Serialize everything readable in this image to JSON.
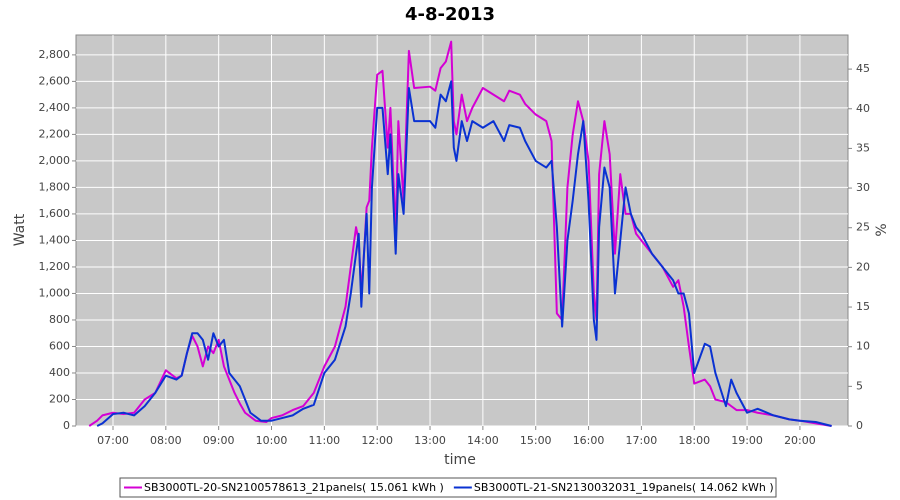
{
  "chart_data": {
    "type": "line",
    "title": "4-8-2013",
    "x_label": "time",
    "y_label": "Watt",
    "y2_label": "%",
    "grid": true,
    "x": [
      6.55,
      6.7,
      6.8,
      7.0,
      7.2,
      7.4,
      7.6,
      7.8,
      8.0,
      8.2,
      8.3,
      8.4,
      8.5,
      8.6,
      8.7,
      8.8,
      8.9,
      9.0,
      9.1,
      9.2,
      9.3,
      9.4,
      9.5,
      9.6,
      9.7,
      9.8,
      9.9,
      10.0,
      10.2,
      10.4,
      10.6,
      10.8,
      11.0,
      11.2,
      11.4,
      11.5,
      11.6,
      11.65,
      11.7,
      11.75,
      11.8,
      11.85,
      11.9,
      12.0,
      12.1,
      12.2,
      12.25,
      12.35,
      12.4,
      12.5,
      12.6,
      12.7,
      13.0,
      13.1,
      13.2,
      13.3,
      13.4,
      13.45,
      13.5,
      13.6,
      13.7,
      13.8,
      14.0,
      14.2,
      14.4,
      14.5,
      14.7,
      14.8,
      15.0,
      15.2,
      15.3,
      15.4,
      15.5,
      15.6,
      15.7,
      15.8,
      15.9,
      16.0,
      16.1,
      16.15,
      16.2,
      16.3,
      16.4,
      16.5,
      16.6,
      16.7,
      16.8,
      16.9,
      17.0,
      17.2,
      17.4,
      17.6,
      17.7,
      17.8,
      17.9,
      18.0,
      18.2,
      18.3,
      18.4,
      18.6,
      18.7,
      18.8,
      19.0,
      19.2,
      19.5,
      19.8,
      20.0,
      20.3,
      20.6
    ],
    "series": [
      {
        "name": "SB3000TL-20-SN2100578613_21panels( 15.061 kWh )",
        "color": "#d400d4",
        "values": [
          0,
          40,
          80,
          100,
          90,
          100,
          200,
          250,
          420,
          360,
          380,
          550,
          680,
          600,
          450,
          600,
          550,
          650,
          450,
          350,
          250,
          170,
          100,
          70,
          40,
          35,
          30,
          60,
          80,
          120,
          150,
          250,
          450,
          600,
          900,
          1200,
          1500,
          1400,
          1000,
          1300,
          1650,
          1700,
          2100,
          2650,
          2680,
          2100,
          2400,
          1450,
          2300,
          1700,
          2830,
          2550,
          2560,
          2530,
          2700,
          2750,
          2900,
          2300,
          2200,
          2500,
          2300,
          2400,
          2550,
          2500,
          2450,
          2530,
          2500,
          2430,
          2350,
          2300,
          2150,
          850,
          800,
          1800,
          2200,
          2450,
          2300,
          2000,
          1000,
          800,
          1900,
          2300,
          2050,
          1300,
          1900,
          1600,
          1600,
          1450,
          1400,
          1300,
          1200,
          1050,
          1100,
          900,
          600,
          320,
          350,
          300,
          200,
          180,
          150,
          120,
          120,
          100,
          80,
          50,
          40,
          20,
          0
        ]
      },
      {
        "name": "SB3000TL-21-SN2130032031_19panels( 14.062 kWh )",
        "color": "#0a32d2",
        "values": [
          null,
          0,
          20,
          90,
          100,
          80,
          150,
          250,
          380,
          350,
          380,
          550,
          700,
          700,
          650,
          500,
          700,
          600,
          650,
          400,
          350,
          300,
          200,
          100,
          70,
          40,
          40,
          40,
          60,
          80,
          130,
          160,
          400,
          500,
          750,
          1000,
          1300,
          1450,
          900,
          1300,
          1600,
          1000,
          1800,
          2400,
          2400,
          1900,
          2200,
          1300,
          1900,
          1600,
          2550,
          2300,
          2300,
          2250,
          2500,
          2450,
          2600,
          2100,
          2000,
          2300,
          2150,
          2300,
          2250,
          2300,
          2150,
          2270,
          2250,
          2150,
          2000,
          1950,
          2000,
          1500,
          750,
          1400,
          1700,
          2050,
          2300,
          1700,
          800,
          650,
          1500,
          1950,
          1800,
          1000,
          1400,
          1800,
          1600,
          1500,
          1450,
          1300,
          1200,
          1100,
          1000,
          1000,
          850,
          400,
          620,
          600,
          400,
          150,
          350,
          250,
          100,
          130,
          80,
          50,
          40,
          30,
          0
        ]
      }
    ],
    "xlim": [
      6.3,
      20.91
    ],
    "xticks": [
      {
        "value": 7,
        "label": "07:00"
      },
      {
        "value": 8,
        "label": "08:00"
      },
      {
        "value": 9,
        "label": "09:00"
      },
      {
        "value": 10,
        "label": "10:00"
      },
      {
        "value": 11,
        "label": "11:00"
      },
      {
        "value": 12,
        "label": "12:00"
      },
      {
        "value": 13,
        "label": "13:00"
      },
      {
        "value": 14,
        "label": "14:00"
      },
      {
        "value": 15,
        "label": "15:00"
      },
      {
        "value": 16,
        "label": "16:00"
      },
      {
        "value": 17,
        "label": "17:00"
      },
      {
        "value": 18,
        "label": "18:00"
      },
      {
        "value": 19,
        "label": "19:00"
      },
      {
        "value": 20,
        "label": "20:00"
      }
    ],
    "ylim": [
      0,
      2950
    ],
    "yticks": [
      0,
      200,
      400,
      600,
      800,
      {
        "value": 1000,
        "label": "1,000"
      },
      {
        "value": 1200,
        "label": "1,200"
      },
      {
        "value": 1400,
        "label": "1,400"
      },
      {
        "value": 1600,
        "label": "1,600"
      },
      {
        "value": 1800,
        "label": "1,800"
      },
      {
        "value": 2000,
        "label": "2,000"
      },
      {
        "value": 2200,
        "label": "2,200"
      },
      {
        "value": 2400,
        "label": "2,400"
      },
      {
        "value": 2600,
        "label": "2,600"
      },
      {
        "value": 2800,
        "label": "2,800"
      }
    ],
    "y2lim": [
      0,
      49.3
    ],
    "y2ticks": [
      0,
      5,
      10,
      15,
      20,
      25,
      30,
      35,
      40,
      45
    ]
  }
}
